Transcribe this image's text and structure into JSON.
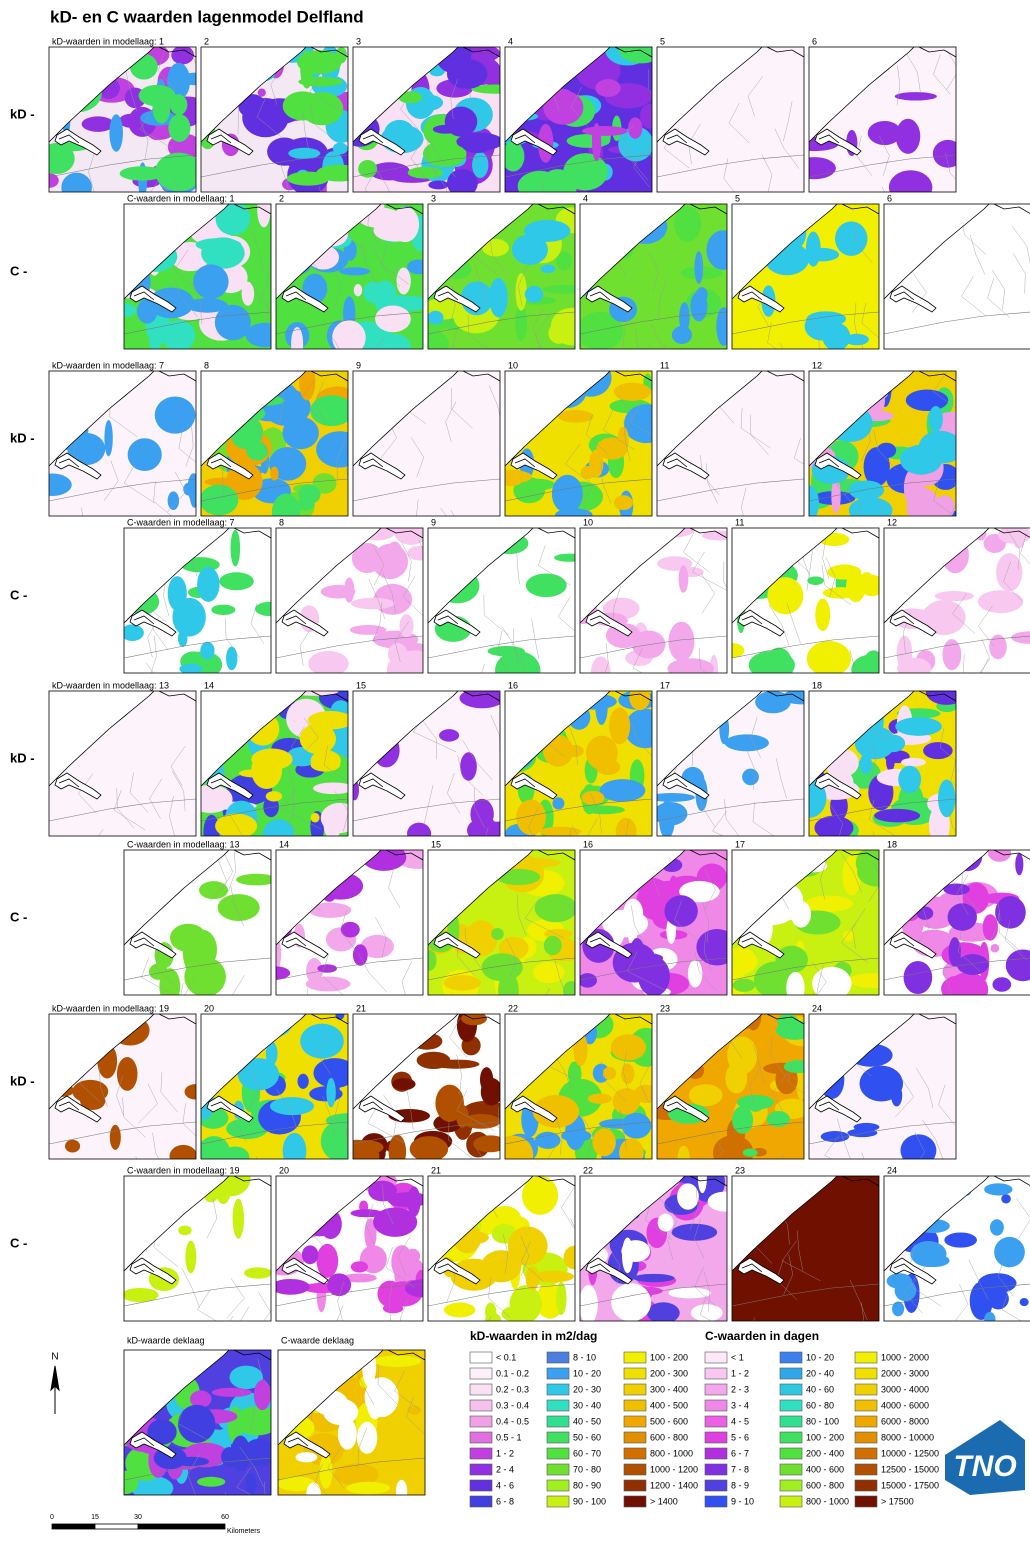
{
  "title": "kD- en C waarden lagenmodel Delfland",
  "blocks": [
    {
      "kd_row_label": "kD -",
      "c_row_label": "C -",
      "kd_panels": [
        "kD-waarden in modellaag: 1",
        "2",
        "3",
        "4",
        "5",
        "6"
      ],
      "c_panels": [
        "C-waarden in modellaag: 1",
        "2",
        "3",
        "4",
        "5",
        "6"
      ]
    },
    {
      "kd_row_label": "kD -",
      "c_row_label": "C -",
      "kd_panels": [
        "kD-waarden in modellaag: 7",
        "8",
        "9",
        "10",
        "11",
        "12"
      ],
      "c_panels": [
        "C-waarden in modellaag: 7",
        "8",
        "9",
        "10",
        "11",
        "12"
      ]
    },
    {
      "kd_row_label": "kD -",
      "c_row_label": "C -",
      "kd_panels": [
        "kD-waarden in modellaag: 13",
        "14",
        "15",
        "16",
        "17",
        "18"
      ],
      "c_panels": [
        "C-waarden in modellaag: 13",
        "14",
        "15",
        "16",
        "17",
        "18"
      ]
    },
    {
      "kd_row_label": "kD -",
      "c_row_label": "C -",
      "kd_panels": [
        "kD-waarden in modellaag: 19",
        "20",
        "21",
        "22",
        "23",
        "24"
      ],
      "c_panels": [
        "C-waarden in modellaag: 19",
        "20",
        "21",
        "22",
        "23",
        "24"
      ]
    }
  ],
  "deklaag": [
    "kD-waarde deklaag",
    "C-waarde deklaag"
  ],
  "legend_kd": {
    "title": "kD-waarden in m2/dag",
    "items": [
      {
        "label": "< 0.1",
        "color": "#ffffff"
      },
      {
        "label": "0.1 - 0.2",
        "color": "#fdf0fa"
      },
      {
        "label": "0.2 - 0.3",
        "color": "#fae0f5"
      },
      {
        "label": "0.3 - 0.4",
        "color": "#f5c0ec"
      },
      {
        "label": "0.4 - 0.5",
        "color": "#f0a0e4"
      },
      {
        "label": "0.5 - 1",
        "color": "#e070e0"
      },
      {
        "label": "1 - 2",
        "color": "#c040e0"
      },
      {
        "label": "2 - 4",
        "color": "#9030e0"
      },
      {
        "label": "4 - 6",
        "color": "#6030e0"
      },
      {
        "label": "6 - 8",
        "color": "#4040e0"
      },
      {
        "label": "8 - 10",
        "color": "#4a7fe0"
      },
      {
        "label": "10 - 20",
        "color": "#3ca0f0"
      },
      {
        "label": "20 - 30",
        "color": "#30c8e8"
      },
      {
        "label": "30 - 40",
        "color": "#30e0c0"
      },
      {
        "label": "40 - 50",
        "color": "#30e090"
      },
      {
        "label": "50 - 60",
        "color": "#40e060"
      },
      {
        "label": "60 - 70",
        "color": "#50e040"
      },
      {
        "label": "70 - 80",
        "color": "#70e030"
      },
      {
        "label": "80 - 90",
        "color": "#a0f020"
      },
      {
        "label": "90 - 100",
        "color": "#c8f010"
      },
      {
        "label": "100 - 200",
        "color": "#f0f000"
      },
      {
        "label": "200 - 300",
        "color": "#f0e000"
      },
      {
        "label": "300 - 400",
        "color": "#f0d000"
      },
      {
        "label": "400 - 500",
        "color": "#f0c000"
      },
      {
        "label": "500 - 600",
        "color": "#f0a800"
      },
      {
        "label": "600 - 800",
        "color": "#e09000"
      },
      {
        "label": "800 - 1000",
        "color": "#d07000"
      },
      {
        "label": "1000 - 1200",
        "color": "#b05000"
      },
      {
        "label": "1200 - 1400",
        "color": "#903000"
      },
      {
        "label": "> 1400",
        "color": "#701000"
      }
    ]
  },
  "legend_c": {
    "title": "C-waarden in dagen",
    "items": [
      {
        "label": "< 1",
        "color": "#fce8f8"
      },
      {
        "label": "1 - 2",
        "color": "#f8c8f0"
      },
      {
        "label": "2 - 3",
        "color": "#f4a8ec"
      },
      {
        "label": "3 - 4",
        "color": "#f088e8"
      },
      {
        "label": "4 - 5",
        "color": "#ec60e4"
      },
      {
        "label": "5 - 6",
        "color": "#e040e0"
      },
      {
        "label": "6 - 7",
        "color": "#b030e0"
      },
      {
        "label": "7 - 8",
        "color": "#8030e0"
      },
      {
        "label": "8 - 9",
        "color": "#5040e0"
      },
      {
        "label": "9 - 10",
        "color": "#3050f0"
      },
      {
        "label": "10 - 20",
        "color": "#3c80f0"
      },
      {
        "label": "20 - 40",
        "color": "#30a8e8"
      },
      {
        "label": "40 - 60",
        "color": "#30c8e0"
      },
      {
        "label": "60 - 80",
        "color": "#30e0c0"
      },
      {
        "label": "80 - 100",
        "color": "#30e090"
      },
      {
        "label": "100 - 200",
        "color": "#40e060"
      },
      {
        "label": "200 - 400",
        "color": "#50e040"
      },
      {
        "label": "400 - 600",
        "color": "#70e030"
      },
      {
        "label": "600 - 800",
        "color": "#a0f020"
      },
      {
        "label": "800 - 1000",
        "color": "#c8f010"
      },
      {
        "label": "1000 - 2000",
        "color": "#f0f000"
      },
      {
        "label": "2000 - 3000",
        "color": "#f0e000"
      },
      {
        "label": "3000 - 4000",
        "color": "#f0d000"
      },
      {
        "label": "4000 - 6000",
        "color": "#f0c000"
      },
      {
        "label": "6000 - 8000",
        "color": "#f0a800"
      },
      {
        "label": "8000 - 10000",
        "color": "#e09000"
      },
      {
        "label": "10000 - 12500",
        "color": "#d07000"
      },
      {
        "label": "12500 - 15000",
        "color": "#b05000"
      },
      {
        "label": "15000 - 17500",
        "color": "#903000"
      },
      {
        "label": "> 17500",
        "color": "#701000"
      }
    ]
  },
  "scale": {
    "ticks": [
      "0",
      "15",
      "30",
      "60"
    ],
    "unit": "Kilometers"
  },
  "north": "N",
  "logo": "TNO"
}
